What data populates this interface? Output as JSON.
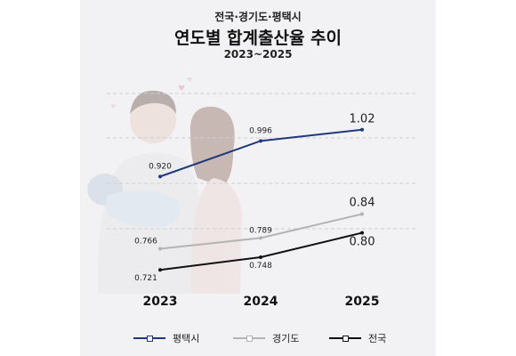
{
  "header": {
    "supertitle": "전국·경기도·평택시",
    "title": "연도별 합계출산율 추이",
    "subtitle": "2023~2025"
  },
  "colors": {
    "pyeongtaek": "#1f3a7a",
    "gyeonggi": "#b3b3b3",
    "national": "#111111",
    "background": "#f2f2f4"
  },
  "illustration": "family-illustration",
  "chart_data": {
    "type": "line",
    "categories": [
      "2023",
      "2024",
      "2025"
    ],
    "ylim": [
      0.68,
      1.1
    ],
    "grid": true,
    "legend_position": "bottom",
    "series": [
      {
        "name": "평택시",
        "values": [
          0.92,
          0.996,
          1.02
        ],
        "labels": [
          "0.920",
          "0.996",
          "1.02"
        ],
        "color": "#1f3a7a"
      },
      {
        "name": "경기도",
        "values": [
          0.766,
          0.789,
          0.84
        ],
        "labels": [
          "0.766",
          "0.789",
          "0.84"
        ],
        "color": "#b3b3b3"
      },
      {
        "name": "전국",
        "values": [
          0.721,
          0.748,
          0.8
        ],
        "labels": [
          "0.721",
          "0.748",
          "0.80"
        ],
        "color": "#111111"
      }
    ]
  }
}
